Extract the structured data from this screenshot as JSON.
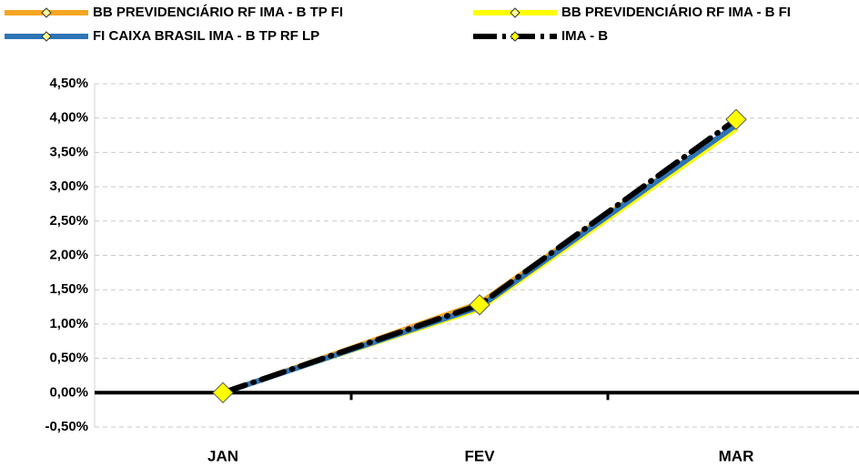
{
  "chart_data": {
    "type": "line",
    "categories": [
      "JAN",
      "FEV",
      "MAR"
    ],
    "series": [
      {
        "name": "BB PREVIDENCIÁRIO RF IMA - B TP FI",
        "color": "#f5a623",
        "values": [
          0,
          1.31,
          3.9
        ]
      },
      {
        "name": "BB PREVIDENCIÁRIO RF IMA - B FI",
        "color": "#ffff00",
        "values": [
          0,
          1.21,
          3.83
        ]
      },
      {
        "name": "FI CAIXA BRASIL IMA - B TP RF LP",
        "color": "#2e75b6",
        "values": [
          0,
          1.25,
          3.9
        ]
      },
      {
        "name": "IMA - B",
        "color": "#000000",
        "marker_color": "#ffff00",
        "values": [
          0,
          1.28,
          3.98
        ]
      }
    ],
    "ylim": [
      -0.5,
      4.5
    ],
    "yticks": [
      {
        "value": -0.5,
        "label": "-0,50%"
      },
      {
        "value": 0,
        "label": "0,00%"
      },
      {
        "value": 0.5,
        "label": "0,50%"
      },
      {
        "value": 1,
        "label": "1,00%"
      },
      {
        "value": 1.5,
        "label": "1,50%"
      },
      {
        "value": 2,
        "label": "2,00%"
      },
      {
        "value": 2.5,
        "label": "2,50%"
      },
      {
        "value": 3,
        "label": "3,00%"
      },
      {
        "value": 3.5,
        "label": "3,50%"
      },
      {
        "value": 4,
        "label": "4,00%"
      },
      {
        "value": 4.5,
        "label": "4,50%"
      }
    ],
    "grid": true,
    "legend": "top"
  }
}
